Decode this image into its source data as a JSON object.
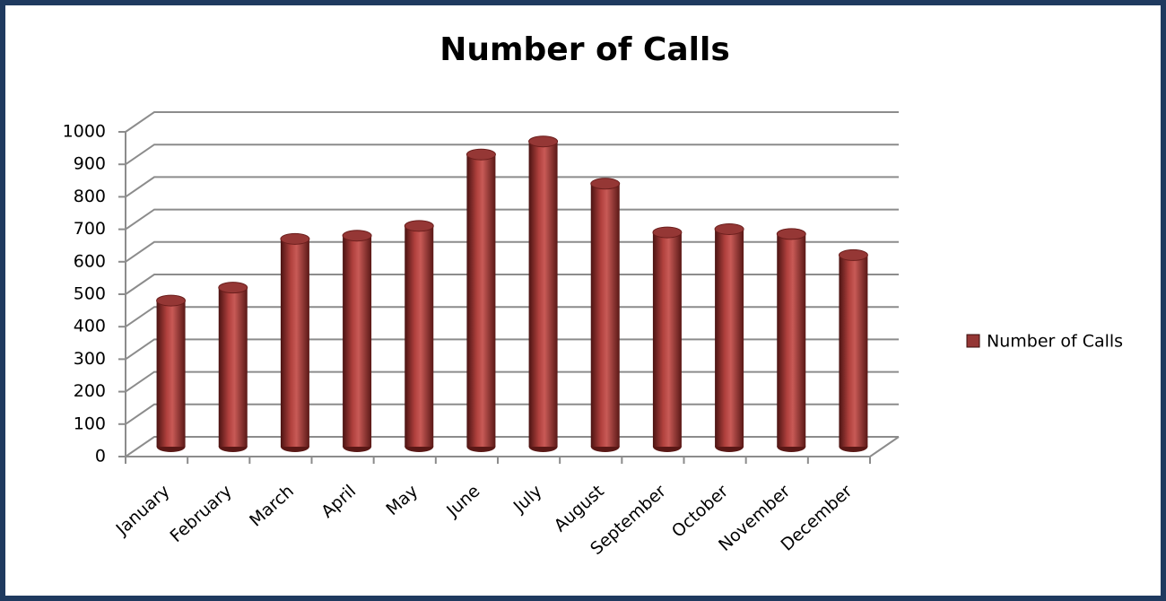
{
  "chart_data": {
    "type": "bar",
    "title": "Number of Calls",
    "categories": [
      "January",
      "February",
      "March",
      "April",
      "May",
      "June",
      "July",
      "August",
      "September",
      "October",
      "November",
      "December"
    ],
    "series": [
      {
        "name": "Number of Calls",
        "color": "#953735",
        "values": [
          450,
          490,
          640,
          650,
          680,
          900,
          940,
          810,
          660,
          670,
          655,
          590
        ]
      }
    ],
    "ylim": [
      0,
      1000
    ],
    "yticks": [
      0,
      100,
      200,
      300,
      400,
      500,
      600,
      700,
      800,
      900,
      1000
    ],
    "grid": true,
    "legend": "right"
  }
}
